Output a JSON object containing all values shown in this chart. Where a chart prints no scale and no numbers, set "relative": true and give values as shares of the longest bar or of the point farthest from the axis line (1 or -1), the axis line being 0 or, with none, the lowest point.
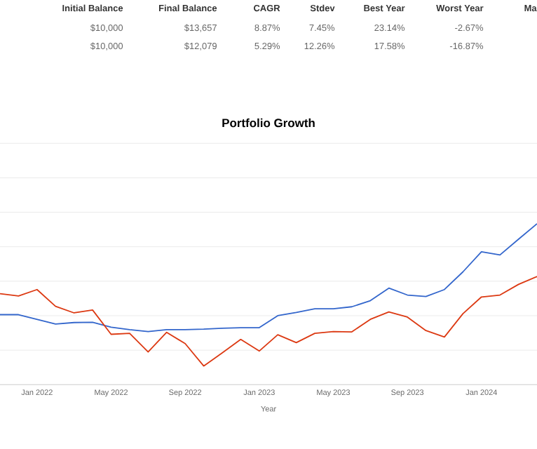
{
  "chart_data": [
    {
      "type": "other",
      "categories": [
        "Initial Balance",
        "Final Balance",
        "CAGR",
        "Stdev",
        "Best Year",
        "Worst Year",
        "Ma"
      ],
      "cell_labels": [
        [
          "$10,000",
          "$13,657",
          "8.87%",
          "7.45%",
          "23.14%",
          "-2.67%",
          null
        ],
        [
          "$10,000",
          "$12,079",
          "5.29%",
          "12.26%",
          "17.58%",
          "-16.87%",
          null
        ]
      ]
    },
    {
      "type": "line",
      "title": "Portfolio Growth",
      "xlabel": "Year",
      "relative": true,
      "grid": "y",
      "x": [
        "2021-11",
        "2021-12",
        "2022-01",
        "2022-02",
        "2022-03",
        "2022-04",
        "2022-05",
        "2022-06",
        "2022-07",
        "2022-08",
        "2022-09",
        "2022-10",
        "2022-11",
        "2022-12",
        "2023-01",
        "2023-02",
        "2023-03",
        "2023-04",
        "2023-05",
        "2023-06",
        "2023-07",
        "2023-08",
        "2023-09",
        "2023-10",
        "2023-11",
        "2023-12",
        "2024-01",
        "2024-02",
        "2024-03",
        "2024-04"
      ],
      "xlim": [
        "2021-11",
        "2024-04"
      ],
      "xticks": [
        {
          "value": "2022-01",
          "label": "Jan 2022"
        },
        {
          "value": "2022-05",
          "label": "May 2022"
        },
        {
          "value": "2022-09",
          "label": "Sep 2022"
        },
        {
          "value": "2023-01",
          "label": "Jan 2023"
        },
        {
          "value": "2023-05",
          "label": "May 2023"
        },
        {
          "value": "2023-09",
          "label": "Sep 2023"
        },
        {
          "value": "2024-01",
          "label": "Jan 2024"
        }
      ],
      "series": [
        {
          "color": "#3366cc",
          "values": [
            0.435,
            0.435,
            0.406,
            0.377,
            0.386,
            0.388,
            0.357,
            0.342,
            0.33,
            0.342,
            0.342,
            0.345,
            0.351,
            0.354,
            0.354,
            0.429,
            0.449,
            0.472,
            0.472,
            0.484,
            0.522,
            0.6,
            0.557,
            0.548,
            0.591,
            0.701,
            0.826,
            0.806,
            0.904,
            1
          ]
        },
        {
          "color": "#dc3912",
          "values": [
            0.565,
            0.551,
            0.591,
            0.487,
            0.446,
            0.464,
            0.313,
            0.319,
            0.203,
            0.325,
            0.255,
            0.116,
            0.197,
            0.281,
            0.209,
            0.31,
            0.261,
            0.319,
            0.33,
            0.328,
            0.406,
            0.452,
            0.42,
            0.336,
            0.296,
            0.441,
            0.545,
            0.557,
            0.623,
            0.672
          ]
        }
      ]
    }
  ]
}
